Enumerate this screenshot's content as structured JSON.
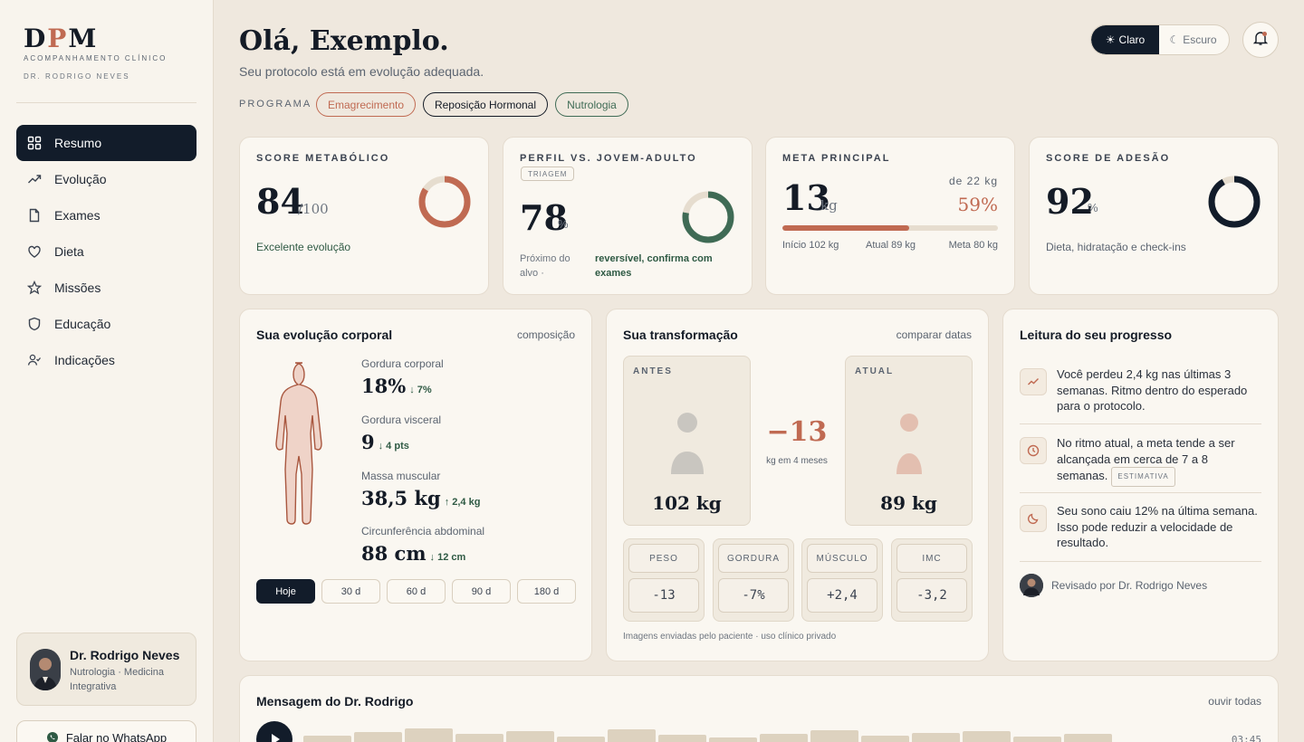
{
  "brand": {
    "logo_a": "D",
    "logo_b": "P",
    "logo_c": "M",
    "subtitle": "ACOMPANHAMENTO CLÍNICO",
    "doctor": "DR. RODRIGO NEVES"
  },
  "nav": [
    {
      "label": "Resumo",
      "icon": "grid-icon"
    },
    {
      "label": "Evolução",
      "icon": "trend-icon"
    },
    {
      "label": "Exames",
      "icon": "file-icon"
    },
    {
      "label": "Dieta",
      "icon": "heart-icon"
    },
    {
      "label": "Missões",
      "icon": "star-icon"
    },
    {
      "label": "Educação",
      "icon": "shield-icon"
    },
    {
      "label": "Indicações",
      "icon": "user-check-icon"
    }
  ],
  "doctor_card": {
    "name": "Dr. Rodrigo Neves",
    "specialty": "Nutrologia · Medicina Integrativa"
  },
  "whatsapp_label": "Falar no WhatsApp",
  "header": {
    "greeting": "Olá, Exemplo.",
    "subtitle": "Seu protocolo está em evolução adequada.",
    "program_label": "PROGRAMA",
    "programs": [
      "Emagrecimento",
      "Reposição Hormonal",
      "Nutrologia"
    ]
  },
  "theme": {
    "light": "Claro",
    "dark": "Escuro"
  },
  "stats": {
    "metabolic": {
      "title": "SCORE METABÓLICO",
      "value": "84",
      "suffix": "/100",
      "note": "Excelente evolução",
      "ring_fraction": 0.84,
      "color": "#c06a52"
    },
    "profile": {
      "title": "PERFIL VS. JOVEM-ADULTO",
      "badge": "TRIAGEM",
      "value": "78",
      "suffix": "%",
      "note_a": "Próximo do alvo ·",
      "note_b": "reversível, confirma com exames",
      "ring_fraction": 0.78,
      "color": "#3f6b55"
    },
    "goal": {
      "title": "META PRINCIPAL",
      "value": "13",
      "suffix": "kg",
      "of": "de 22 kg",
      "pct": "59%",
      "fraction": 0.59,
      "start": "Início 102 kg",
      "current": "Atual 89 kg",
      "target": "Meta 80 kg"
    },
    "adherence": {
      "title": "SCORE DE ADESÃO",
      "value": "92",
      "suffix": "%",
      "note": "Dieta, hidratação e check-ins",
      "ring_fraction": 0.92,
      "color": "#121c2a"
    }
  },
  "body": {
    "title": "Sua evolução corporal",
    "link": "composição",
    "metrics": [
      {
        "label": "Gordura corporal",
        "value": "18%",
        "delta": "↓ 7%"
      },
      {
        "label": "Gordura visceral",
        "value": "9",
        "delta": "↓ 4 pts"
      },
      {
        "label": "Massa muscular",
        "value": "38,5 kg",
        "delta": "↑ 2,4 kg"
      },
      {
        "label": "Circunferência abdominal",
        "value": "88 cm",
        "delta": "↓ 12 cm"
      }
    ],
    "ranges": [
      "Hoje",
      "30 d",
      "60 d",
      "90 d",
      "180 d"
    ]
  },
  "transform": {
    "title": "Sua transformação",
    "link": "comparar datas",
    "before": {
      "label": "ANTES",
      "weight": "102 kg"
    },
    "after": {
      "label": "ATUAL",
      "weight": "89 kg"
    },
    "diff": "−13",
    "diff_sub": "kg em 4 meses",
    "compare": [
      {
        "h": "PESO",
        "v": "-13"
      },
      {
        "h": "GORDURA",
        "v": "-7%"
      },
      {
        "h": "MÚSCULO",
        "v": "+2,4"
      },
      {
        "h": "IMC",
        "v": "-3,2"
      }
    ],
    "footnote": "Imagens enviadas pelo paciente · uso clínico privado"
  },
  "progress": {
    "title": "Leitura do seu progresso",
    "items": [
      {
        "icon": "trend-icon",
        "text": "Você perdeu 2,4 kg nas últimas 3 semanas. Ritmo dentro do esperado para o protocolo."
      },
      {
        "icon": "clock-icon",
        "text": "No ritmo atual, a meta tende a ser alcançada em cerca de 7 a 8 semanas.",
        "tag": "ESTIMATIVA"
      },
      {
        "icon": "moon-icon",
        "text": "Seu sono caiu 12% na última semana. Isso pode reduzir a velocidade de resultado."
      }
    ],
    "reviewed": "Revisado por Dr. Rodrigo Neves"
  },
  "message": {
    "title": "Mensagem do Dr. Rodrigo",
    "link": "ouvir todas",
    "duration": "03:45"
  },
  "colors": {
    "accent": "#c06a52",
    "dark": "#121c2a",
    "green": "#3f6b55"
  }
}
